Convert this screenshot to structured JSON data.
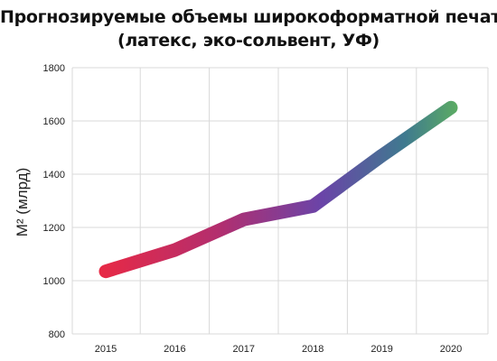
{
  "chart_data": {
    "type": "line",
    "title": [
      "Прогнозируемые объемы широкоформатной печати",
      "(латекс, эко-сольвент, УФ)"
    ],
    "xlabel": "",
    "ylabel": "М² (млрд)",
    "categories": [
      "2015",
      "2016",
      "2017",
      "2018",
      "2019",
      "2020"
    ],
    "series": [
      {
        "values": [
          1035,
          1115,
          1230,
          1280,
          1470,
          1650
        ]
      }
    ],
    "ylim": [
      800,
      1800
    ],
    "yticks": [
      800,
      1000,
      1200,
      1400,
      1600,
      1800
    ],
    "grid": true,
    "legend": "none",
    "colors": {
      "gradient_start": "#f4283c",
      "gradient_mid1": "#b32e6e",
      "gradient_mid2": "#6a44a8",
      "gradient_mid3": "#3f7a8f",
      "gradient_end": "#6cc84a",
      "grid": "#d9d9d9",
      "axis_text": "#222222"
    }
  }
}
